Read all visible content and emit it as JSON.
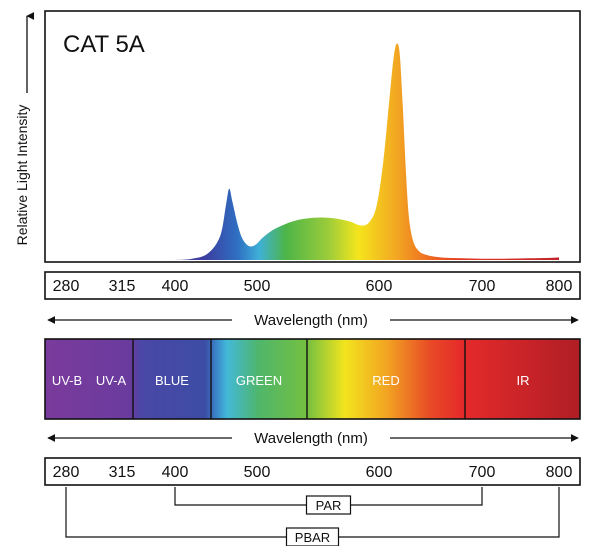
{
  "chart_data": {
    "type": "area",
    "title": "CAT 5A",
    "ylabel": "Relative Light Intensity",
    "xlabel": "Wavelength (nm)",
    "x_ticks": [
      280,
      315,
      400,
      500,
      600,
      700,
      800
    ],
    "xlim": [
      280,
      800
    ],
    "ylim": [
      0,
      1
    ],
    "grid": false,
    "spectrum": {
      "x": [
        400,
        420,
        440,
        455,
        462,
        466,
        470,
        476,
        482,
        490,
        498,
        505,
        515,
        530,
        545,
        560,
        575,
        585,
        592,
        598,
        604,
        610,
        614,
        617,
        620,
        623,
        626,
        629,
        633,
        638,
        645,
        660,
        680,
        700,
        730,
        760,
        790,
        800
      ],
      "y": [
        0.0,
        0.005,
        0.03,
        0.11,
        0.25,
        0.33,
        0.27,
        0.17,
        0.1,
        0.065,
        0.07,
        0.105,
        0.145,
        0.18,
        0.195,
        0.195,
        0.18,
        0.16,
        0.175,
        0.25,
        0.45,
        0.74,
        0.93,
        1.0,
        0.96,
        0.72,
        0.42,
        0.2,
        0.09,
        0.045,
        0.025,
        0.012,
        0.008,
        0.006,
        0.006,
        0.008,
        0.01,
        0.012
      ]
    },
    "bands": [
      {
        "label": "UV-B",
        "color": "#7b3a9e"
      },
      {
        "label": "UV-A",
        "color": "#6a3a9e"
      },
      {
        "label": "BLUE",
        "color": "#3a4aa8"
      },
      {
        "label": "GREEN",
        "color": "#4fb35a"
      },
      {
        "label": "RED",
        "color": "#e52a2a"
      },
      {
        "label": "IR",
        "color": "#b82028"
      }
    ],
    "band_axis_label": "Wavelength (nm)",
    "ranges": [
      {
        "label": "PAR",
        "from": 400,
        "to": 700
      },
      {
        "label": "PBAR",
        "from": 280,
        "to": 800
      }
    ]
  }
}
